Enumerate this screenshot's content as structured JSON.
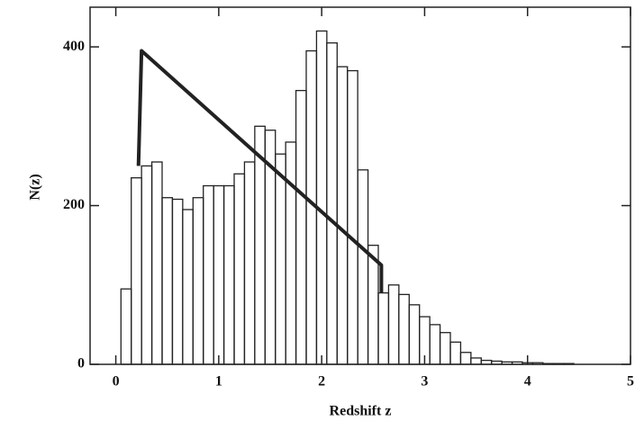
{
  "chart_data": {
    "type": "histogram",
    "x_label": "Redshift z",
    "y_label": "N(z)",
    "bins": [
      0.05,
      0.15,
      0.25,
      0.35,
      0.45,
      0.55,
      0.65,
      0.75,
      0.85,
      0.95,
      1.05,
      1.15,
      1.25,
      1.35,
      1.45,
      1.55,
      1.65,
      1.75,
      1.85,
      1.95,
      2.05,
      2.15,
      2.25,
      2.35,
      2.45,
      2.55,
      2.65,
      2.75,
      2.85,
      2.95,
      3.05,
      3.15,
      3.25,
      3.35,
      3.45,
      3.55,
      3.65,
      3.75,
      3.85,
      3.95,
      4.05,
      4.15,
      4.25,
      4.35,
      4.45
    ],
    "values": [
      95,
      235,
      250,
      255,
      210,
      208,
      195,
      210,
      225,
      225,
      225,
      240,
      255,
      300,
      295,
      265,
      280,
      345,
      395,
      420,
      405,
      375,
      370,
      245,
      150,
      90,
      100,
      88,
      75,
      60,
      50,
      40,
      28,
      15,
      8,
      5,
      4,
      3,
      3,
      2,
      2,
      1,
      1,
      1
    ],
    "color": "#222",
    "overlay": {
      "x": [
        0.22,
        0.25,
        2.58,
        2.58
      ],
      "values": [
        250,
        395,
        125,
        90
      ],
      "color": "#222"
    },
    "xlim": [
      -0.25,
      5
    ],
    "ylim": [
      0,
      450
    ],
    "xticks": [
      0,
      1,
      2,
      3,
      4,
      5
    ],
    "yticks": [
      0,
      200,
      400
    ]
  }
}
